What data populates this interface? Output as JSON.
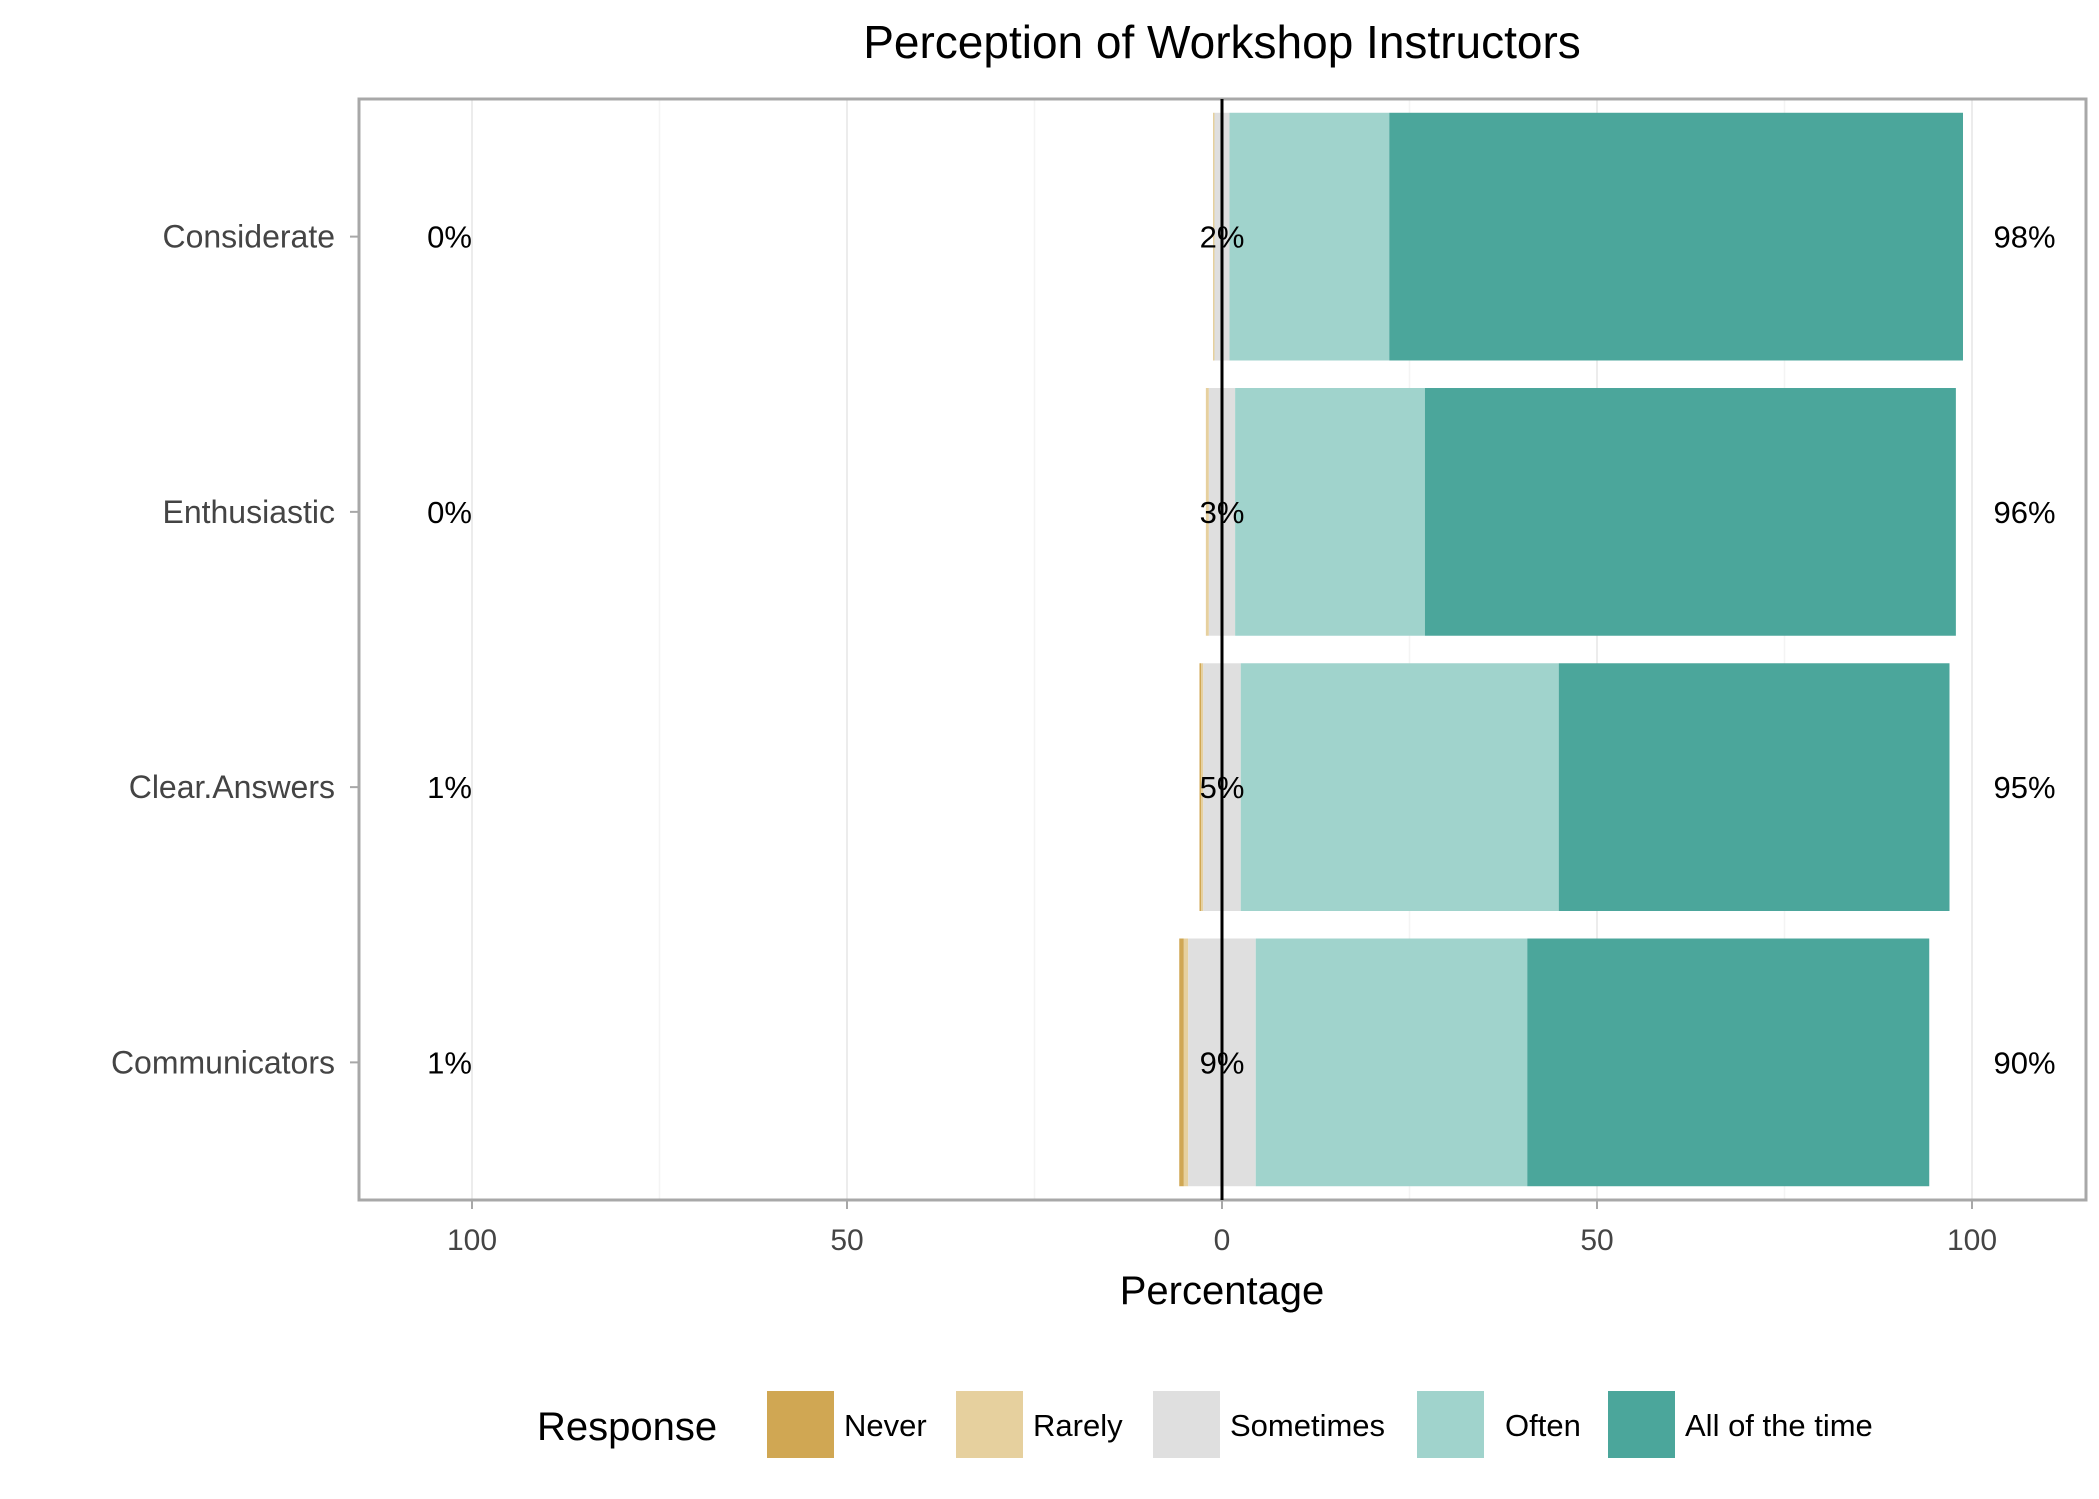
{
  "chart_data": {
    "type": "bar",
    "subtype": "diverging-stacked-horizontal",
    "title": "Perception of Workshop Instructors",
    "xlabel": "Percentage",
    "ylabel": "",
    "xlim": [
      -115,
      113
    ],
    "x_ticks": [
      {
        "value": -100,
        "label": "100"
      },
      {
        "value": -50,
        "label": "50"
      },
      {
        "value": 0,
        "label": "0"
      },
      {
        "value": 50,
        "label": "50"
      },
      {
        "value": 100,
        "label": "100"
      }
    ],
    "grid": true,
    "legend": {
      "title": "Response",
      "position": "bottom"
    },
    "response_levels": [
      {
        "name": "Never",
        "color": "#D0A753"
      },
      {
        "name": "Rarely",
        "color": "#E6D09E"
      },
      {
        "name": "Sometimes",
        "color": "#DFDFDF"
      },
      {
        "name": "Often",
        "color": "#A0D3CC"
      },
      {
        "name": "All of the time",
        "color": "#4BA69B"
      }
    ],
    "categories": [
      "Considerate",
      "Enthusiastic",
      "Clear.Answers",
      "Communicators"
    ],
    "values": [
      {
        "Never": 0.0,
        "Rarely": 0.2,
        "Sometimes": 2.0,
        "Often": 21.3,
        "All of the time": 76.5
      },
      {
        "Never": 0.0,
        "Rarely": 0.4,
        "Sometimes": 3.5,
        "Often": 25.3,
        "All of the time": 70.8
      },
      {
        "Never": 0.2,
        "Rarely": 0.3,
        "Sometimes": 5.0,
        "Often": 42.4,
        "All of the time": 52.1
      },
      {
        "Never": 0.6,
        "Rarely": 0.6,
        "Sometimes": 9.0,
        "Often": 36.2,
        "All of the time": 53.6
      }
    ],
    "summary_labels": [
      {
        "left": "0%",
        "center": "2%",
        "right": "98%"
      },
      {
        "left": "0%",
        "center": "3%",
        "right": "96%"
      },
      {
        "left": "1%",
        "center": "5%",
        "right": "95%"
      },
      {
        "left": "1%",
        "center": "9%",
        "right": "90%"
      }
    ]
  }
}
